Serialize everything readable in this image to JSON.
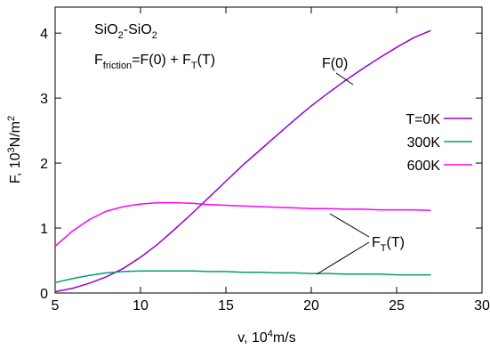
{
  "chart_data": {
    "type": "line",
    "xlabel": {
      "main": "v, 10",
      "sup": "4",
      "rest": "m/s"
    },
    "ylabel": {
      "main": "F, 10",
      "sup": "3",
      "rest": "N/m",
      "sup2": "2"
    },
    "xlim": [
      5,
      30
    ],
    "ylim": [
      0,
      4.4
    ],
    "xticks": [
      5,
      10,
      15,
      20,
      25,
      30
    ],
    "yticks": [
      0,
      1,
      2,
      3,
      4
    ],
    "annotations": {
      "material": {
        "a": "SiO",
        "s1": "2",
        "b": "-SiO",
        "s2": "2"
      },
      "formula": {
        "a": "F",
        "s1": "friction",
        "b": "=F(0) + F",
        "s2": "T",
        "c": "(T)"
      },
      "f0": "F(0)",
      "ft": {
        "a": "F",
        "s": "T",
        "b": "(T)"
      }
    },
    "series": [
      {
        "name": "T=0K",
        "color": "#9400d3",
        "x": [
          5,
          6,
          7,
          8,
          9,
          10,
          11,
          12,
          13,
          14,
          15,
          16,
          17,
          18,
          19,
          20,
          21,
          22,
          23,
          24,
          25,
          26,
          27
        ],
        "y": [
          0.02,
          0.07,
          0.15,
          0.25,
          0.38,
          0.55,
          0.75,
          0.98,
          1.22,
          1.47,
          1.72,
          1.97,
          2.2,
          2.43,
          2.66,
          2.88,
          3.08,
          3.27,
          3.45,
          3.62,
          3.78,
          3.93,
          4.04
        ]
      },
      {
        "name": "300K",
        "color": "#009e73",
        "x": [
          5,
          6,
          7,
          8,
          9,
          10,
          11,
          12,
          13,
          14,
          15,
          16,
          17,
          18,
          19,
          20,
          21,
          22,
          23,
          24,
          25,
          26,
          27
        ],
        "y": [
          0.16,
          0.22,
          0.27,
          0.31,
          0.33,
          0.34,
          0.34,
          0.34,
          0.34,
          0.33,
          0.33,
          0.32,
          0.32,
          0.31,
          0.31,
          0.3,
          0.3,
          0.29,
          0.29,
          0.29,
          0.28,
          0.28,
          0.28
        ]
      },
      {
        "name": "600K",
        "color": "#ff00ff",
        "x": [
          5,
          6,
          7,
          8,
          9,
          10,
          11,
          12,
          13,
          14,
          15,
          16,
          17,
          18,
          19,
          20,
          21,
          22,
          23,
          24,
          25,
          26,
          27
        ],
        "y": [
          0.72,
          0.95,
          1.13,
          1.26,
          1.33,
          1.37,
          1.39,
          1.39,
          1.38,
          1.36,
          1.35,
          1.34,
          1.33,
          1.32,
          1.31,
          1.3,
          1.3,
          1.29,
          1.29,
          1.28,
          1.28,
          1.28,
          1.27
        ]
      }
    ],
    "legend": "right"
  }
}
